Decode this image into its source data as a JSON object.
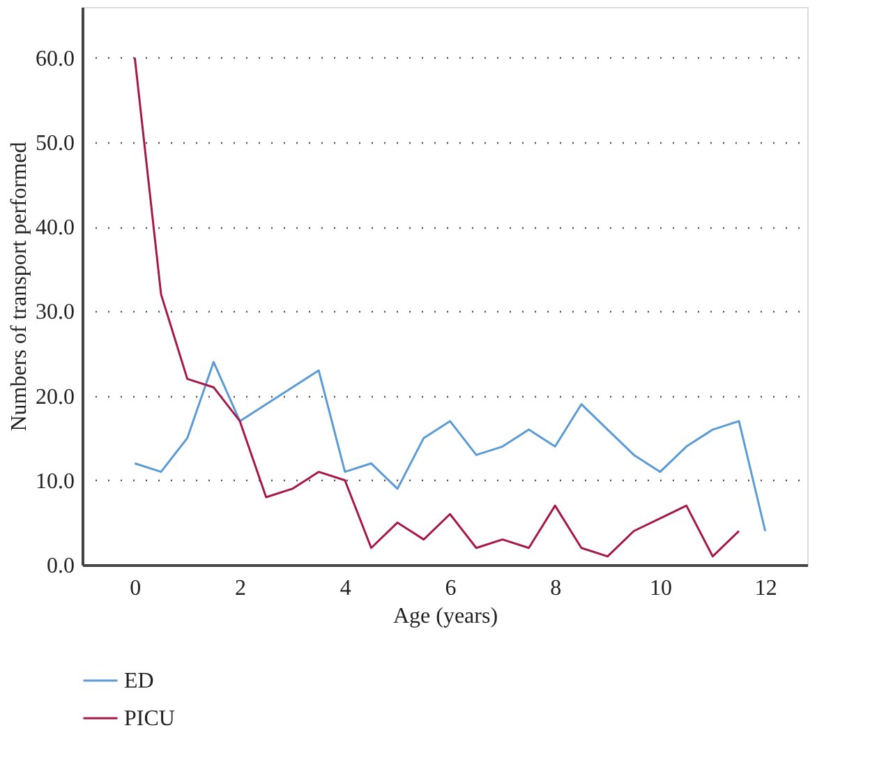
{
  "chart_data": {
    "type": "line",
    "xlabel": "Age (years)",
    "ylabel": "Numbers of transport performed",
    "x": [
      0,
      0.5,
      1,
      1.5,
      2,
      2.5,
      3,
      3.5,
      4,
      4.5,
      5,
      5.5,
      6,
      6.5,
      7,
      7.5,
      8,
      8.5,
      9,
      9.5,
      10,
      10.5,
      11,
      11.5,
      12
    ],
    "series": [
      {
        "name": "ED",
        "color": "#5b9bd5",
        "values": [
          12,
          11,
          15,
          24,
          17,
          19,
          21,
          23,
          11,
          12,
          9,
          15,
          17,
          13,
          14,
          16,
          14,
          19,
          16,
          13,
          11,
          14,
          16,
          17,
          4
        ]
      },
      {
        "name": "PICU",
        "color": "#a5194a",
        "values": [
          60,
          32,
          22,
          21,
          17,
          8,
          9,
          11,
          10,
          2,
          5,
          3,
          6,
          2,
          3,
          2,
          7,
          2,
          1,
          4,
          5.5,
          7,
          1,
          4,
          null
        ]
      }
    ],
    "xlim": [
      -1,
      12.8
    ],
    "xticks": [
      0,
      2,
      4,
      6,
      8,
      10,
      12
    ],
    "ylim": [
      0,
      66
    ],
    "yticks": [
      {
        "value": 0,
        "label": "0.0"
      },
      {
        "value": 10,
        "label": "10.0"
      },
      {
        "value": 20,
        "label": "20.0"
      },
      {
        "value": 30,
        "label": "30.0"
      },
      {
        "value": 40,
        "label": "40.0"
      },
      {
        "value": 50,
        "label": "50.0"
      },
      {
        "value": 60,
        "label": "60.0"
      }
    ],
    "grid": "y",
    "legend": "bottom left",
    "marker": "none",
    "line_style": "solid"
  }
}
